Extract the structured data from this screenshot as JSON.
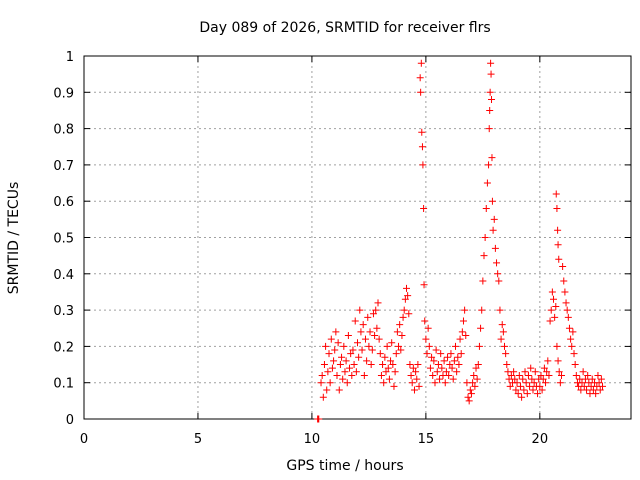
{
  "chart_data": {
    "type": "scatter",
    "title": "Day 089 of 2026, SRMTID for receiver flrs",
    "xlabel": "GPS time / hours",
    "ylabel": "SRMTID / TECUs",
    "xlim": [
      0,
      24
    ],
    "ylim": [
      0,
      1
    ],
    "x_ticks": [
      0,
      5,
      10,
      15,
      20
    ],
    "x_tick_labels": [
      "0",
      "5",
      "10",
      "15",
      "20"
    ],
    "y_ticks": [
      0,
      0.1,
      0.2,
      0.3,
      0.4,
      0.5,
      0.6,
      0.7,
      0.8,
      0.9,
      1
    ],
    "y_tick_labels": [
      "0",
      "0.1",
      "0.2",
      "0.3",
      "0.4",
      "0.5",
      "0.6",
      "0.7",
      "0.8",
      "0.9",
      "1"
    ],
    "grid": true,
    "marker": "+",
    "color": "#ff0000",
    "series": [
      {
        "name": "SRMTID",
        "points": [
          [
            10.25,
            0.0
          ],
          [
            10.27,
            0.0
          ],
          [
            10.3,
            0.0
          ],
          [
            10.4,
            0.1
          ],
          [
            10.45,
            0.12
          ],
          [
            10.5,
            0.06
          ],
          [
            10.55,
            0.15
          ],
          [
            10.6,
            0.2
          ],
          [
            10.65,
            0.08
          ],
          [
            10.7,
            0.13
          ],
          [
            10.75,
            0.18
          ],
          [
            10.8,
            0.1
          ],
          [
            10.85,
            0.22
          ],
          [
            10.9,
            0.14
          ],
          [
            10.95,
            0.16
          ],
          [
            11.0,
            0.19
          ],
          [
            11.05,
            0.24
          ],
          [
            11.1,
            0.12
          ],
          [
            11.15,
            0.21
          ],
          [
            11.2,
            0.08
          ],
          [
            11.25,
            0.15
          ],
          [
            11.3,
            0.17
          ],
          [
            11.35,
            0.11
          ],
          [
            11.4,
            0.2
          ],
          [
            11.45,
            0.13
          ],
          [
            11.5,
            0.16
          ],
          [
            11.55,
            0.1
          ],
          [
            11.6,
            0.23
          ],
          [
            11.65,
            0.14
          ],
          [
            11.7,
            0.18
          ],
          [
            11.75,
            0.12
          ],
          [
            11.8,
            0.19
          ],
          [
            11.85,
            0.15
          ],
          [
            11.9,
            0.27
          ],
          [
            11.95,
            0.13
          ],
          [
            12.0,
            0.21
          ],
          [
            12.05,
            0.17
          ],
          [
            12.1,
            0.3
          ],
          [
            12.15,
            0.24
          ],
          [
            12.2,
            0.19
          ],
          [
            12.25,
            0.26
          ],
          [
            12.3,
            0.12
          ],
          [
            12.35,
            0.22
          ],
          [
            12.4,
            0.16
          ],
          [
            12.45,
            0.28
          ],
          [
            12.5,
            0.2
          ],
          [
            12.55,
            0.24
          ],
          [
            12.6,
            0.15
          ],
          [
            12.65,
            0.19
          ],
          [
            12.7,
            0.29
          ],
          [
            12.75,
            0.23
          ],
          [
            12.8,
            0.3
          ],
          [
            12.85,
            0.25
          ],
          [
            12.9,
            0.32
          ],
          [
            12.95,
            0.22
          ],
          [
            13.0,
            0.18
          ],
          [
            13.05,
            0.12
          ],
          [
            13.1,
            0.15
          ],
          [
            13.15,
            0.1
          ],
          [
            13.2,
            0.17
          ],
          [
            13.25,
            0.13
          ],
          [
            13.3,
            0.2
          ],
          [
            13.35,
            0.14
          ],
          [
            13.4,
            0.11
          ],
          [
            13.45,
            0.16
          ],
          [
            13.5,
            0.21
          ],
          [
            13.55,
            0.15
          ],
          [
            13.6,
            0.09
          ],
          [
            13.65,
            0.13
          ],
          [
            13.7,
            0.18
          ],
          [
            13.75,
            0.24
          ],
          [
            13.8,
            0.2
          ],
          [
            13.85,
            0.26
          ],
          [
            13.9,
            0.19
          ],
          [
            13.95,
            0.23
          ],
          [
            14.0,
            0.28
          ],
          [
            14.05,
            0.3
          ],
          [
            14.1,
            0.33
          ],
          [
            14.15,
            0.36
          ],
          [
            14.2,
            0.34
          ],
          [
            14.25,
            0.29
          ],
          [
            14.3,
            0.15
          ],
          [
            14.35,
            0.12
          ],
          [
            14.4,
            0.1
          ],
          [
            14.45,
            0.14
          ],
          [
            14.5,
            0.08
          ],
          [
            14.55,
            0.13
          ],
          [
            14.6,
            0.11
          ],
          [
            14.65,
            0.15
          ],
          [
            14.7,
            0.09
          ],
          [
            14.75,
            0.94
          ],
          [
            14.77,
            0.9
          ],
          [
            14.8,
            0.98
          ],
          [
            14.82,
            0.79
          ],
          [
            14.85,
            0.75
          ],
          [
            14.87,
            0.7
          ],
          [
            14.9,
            0.58
          ],
          [
            14.92,
            0.37
          ],
          [
            14.95,
            0.27
          ],
          [
            15.0,
            0.22
          ],
          [
            15.05,
            0.18
          ],
          [
            15.1,
            0.25
          ],
          [
            15.15,
            0.2
          ],
          [
            15.2,
            0.14
          ],
          [
            15.25,
            0.17
          ],
          [
            15.3,
            0.12
          ],
          [
            15.35,
            0.16
          ],
          [
            15.4,
            0.1
          ],
          [
            15.45,
            0.19
          ],
          [
            15.5,
            0.13
          ],
          [
            15.55,
            0.15
          ],
          [
            15.6,
            0.11
          ],
          [
            15.65,
            0.18
          ],
          [
            15.7,
            0.14
          ],
          [
            15.75,
            0.12
          ],
          [
            15.8,
            0.16
          ],
          [
            15.85,
            0.1
          ],
          [
            15.9,
            0.13
          ],
          [
            15.95,
            0.17
          ],
          [
            16.0,
            0.12
          ],
          [
            16.05,
            0.15
          ],
          [
            16.1,
            0.18
          ],
          [
            16.15,
            0.14
          ],
          [
            16.2,
            0.11
          ],
          [
            16.25,
            0.16
          ],
          [
            16.3,
            0.2
          ],
          [
            16.35,
            0.13
          ],
          [
            16.4,
            0.17
          ],
          [
            16.45,
            0.15
          ],
          [
            16.5,
            0.22
          ],
          [
            16.55,
            0.18
          ],
          [
            16.6,
            0.24
          ],
          [
            16.65,
            0.27
          ],
          [
            16.7,
            0.3
          ],
          [
            16.75,
            0.23
          ],
          [
            16.8,
            0.1
          ],
          [
            16.85,
            0.06
          ],
          [
            16.9,
            0.05
          ],
          [
            16.95,
            0.08
          ],
          [
            17.0,
            0.07
          ],
          [
            17.05,
            0.1
          ],
          [
            17.1,
            0.12
          ],
          [
            17.15,
            0.09
          ],
          [
            17.2,
            0.14
          ],
          [
            17.25,
            0.11
          ],
          [
            17.3,
            0.15
          ],
          [
            17.35,
            0.2
          ],
          [
            17.4,
            0.25
          ],
          [
            17.45,
            0.3
          ],
          [
            17.5,
            0.38
          ],
          [
            17.55,
            0.45
          ],
          [
            17.6,
            0.5
          ],
          [
            17.65,
            0.58
          ],
          [
            17.7,
            0.65
          ],
          [
            17.75,
            0.7
          ],
          [
            17.78,
            0.8
          ],
          [
            17.8,
            0.85
          ],
          [
            17.82,
            0.9
          ],
          [
            17.84,
            0.98
          ],
          [
            17.86,
            0.95
          ],
          [
            17.88,
            0.88
          ],
          [
            17.9,
            0.72
          ],
          [
            17.92,
            0.6
          ],
          [
            17.95,
            0.52
          ],
          [
            18.0,
            0.55
          ],
          [
            18.05,
            0.47
          ],
          [
            18.1,
            0.43
          ],
          [
            18.15,
            0.4
          ],
          [
            18.2,
            0.38
          ],
          [
            18.25,
            0.3
          ],
          [
            18.3,
            0.22
          ],
          [
            18.35,
            0.26
          ],
          [
            18.4,
            0.24
          ],
          [
            18.45,
            0.2
          ],
          [
            18.5,
            0.18
          ],
          [
            18.55,
            0.15
          ],
          [
            18.6,
            0.13
          ],
          [
            18.65,
            0.11
          ],
          [
            18.7,
            0.09
          ],
          [
            18.75,
            0.12
          ],
          [
            18.8,
            0.1
          ],
          [
            18.85,
            0.13
          ],
          [
            18.9,
            0.11
          ],
          [
            18.95,
            0.08
          ],
          [
            19.0,
            0.1
          ],
          [
            19.05,
            0.07
          ],
          [
            19.1,
            0.12
          ],
          [
            19.15,
            0.09
          ],
          [
            19.2,
            0.06
          ],
          [
            19.25,
            0.11
          ],
          [
            19.3,
            0.08
          ],
          [
            19.35,
            0.13
          ],
          [
            19.4,
            0.1
          ],
          [
            19.45,
            0.07
          ],
          [
            19.5,
            0.12
          ],
          [
            19.55,
            0.09
          ],
          [
            19.6,
            0.14
          ],
          [
            19.65,
            0.11
          ],
          [
            19.7,
            0.08
          ],
          [
            19.75,
            0.1
          ],
          [
            19.8,
            0.13
          ],
          [
            19.85,
            0.09
          ],
          [
            19.9,
            0.07
          ],
          [
            19.95,
            0.11
          ],
          [
            20.0,
            0.09
          ],
          [
            20.05,
            0.12
          ],
          [
            20.1,
            0.08
          ],
          [
            20.15,
            0.11
          ],
          [
            20.2,
            0.14
          ],
          [
            20.25,
            0.1
          ],
          [
            20.3,
            0.13
          ],
          [
            20.35,
            0.16
          ],
          [
            20.4,
            0.12
          ],
          [
            20.45,
            0.27
          ],
          [
            20.5,
            0.3
          ],
          [
            20.55,
            0.35
          ],
          [
            20.6,
            0.33
          ],
          [
            20.65,
            0.28
          ],
          [
            20.7,
            0.31
          ],
          [
            20.75,
            0.2
          ],
          [
            20.8,
            0.16
          ],
          [
            20.85,
            0.13
          ],
          [
            20.9,
            0.1
          ],
          [
            20.95,
            0.12
          ],
          [
            20.72,
            0.62
          ],
          [
            20.75,
            0.58
          ],
          [
            20.78,
            0.52
          ],
          [
            20.8,
            0.48
          ],
          [
            20.83,
            0.44
          ],
          [
            21.0,
            0.42
          ],
          [
            21.05,
            0.38
          ],
          [
            21.1,
            0.35
          ],
          [
            21.15,
            0.32
          ],
          [
            21.2,
            0.3
          ],
          [
            21.25,
            0.28
          ],
          [
            21.3,
            0.25
          ],
          [
            21.35,
            0.22
          ],
          [
            21.4,
            0.2
          ],
          [
            21.45,
            0.24
          ],
          [
            21.5,
            0.18
          ],
          [
            21.55,
            0.15
          ],
          [
            21.6,
            0.12
          ],
          [
            21.65,
            0.1
          ],
          [
            21.7,
            0.09
          ],
          [
            21.75,
            0.11
          ],
          [
            21.8,
            0.08
          ],
          [
            21.85,
            0.1
          ],
          [
            21.9,
            0.13
          ],
          [
            21.95,
            0.09
          ],
          [
            22.0,
            0.11
          ],
          [
            22.05,
            0.08
          ],
          [
            22.1,
            0.12
          ],
          [
            22.15,
            0.1
          ],
          [
            22.2,
            0.07
          ],
          [
            22.25,
            0.09
          ],
          [
            22.3,
            0.11
          ],
          [
            22.35,
            0.08
          ],
          [
            22.4,
            0.1
          ],
          [
            22.45,
            0.07
          ],
          [
            22.5,
            0.09
          ],
          [
            22.55,
            0.12
          ],
          [
            22.6,
            0.1
          ],
          [
            22.65,
            0.08
          ],
          [
            22.7,
            0.11
          ],
          [
            22.75,
            0.09
          ]
        ]
      }
    ]
  }
}
